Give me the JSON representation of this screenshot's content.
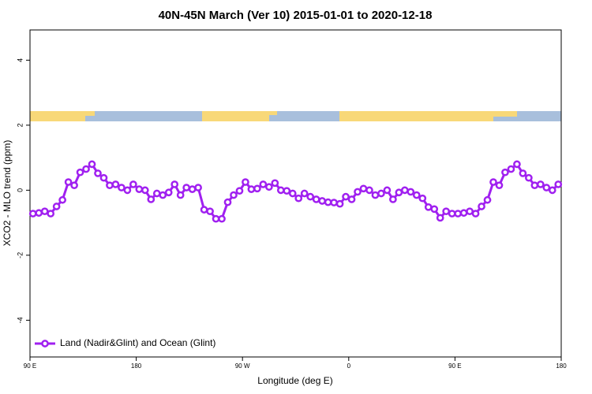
{
  "chart_data": {
    "type": "line",
    "title": "40N-45N March (Ver 10)   2015-01-01 to 2020-12-18",
    "xlabel": "Longitude (deg E)",
    "ylabel": "XCO2 - MLO trend (ppm)",
    "x": [
      92.5,
      97.5,
      102.5,
      107.5,
      112.5,
      117.5,
      122.5,
      127.5,
      132.5,
      137.5,
      142.5,
      147.5,
      152.5,
      157.5,
      162.5,
      167.5,
      172.5,
      177.5,
      182.5,
      187.5,
      192.5,
      197.5,
      202.5,
      207.5,
      212.5,
      217.5,
      222.5,
      227.5,
      232.5,
      237.5,
      242.5,
      247.5,
      252.5,
      257.5,
      262.5,
      267.5,
      272.5,
      277.5,
      282.5,
      287.5,
      292.5,
      297.5,
      302.5,
      307.5,
      312.5,
      317.5,
      322.5,
      327.5,
      332.5,
      337.5,
      342.5,
      347.5,
      352.5,
      357.5,
      362.5,
      367.5,
      372.5,
      377.5,
      382.5,
      387.5,
      392.5,
      397.5,
      402.5,
      407.5,
      412.5,
      417.5,
      422.5,
      427.5,
      432.5,
      437.5,
      442.5,
      447.5,
      452.5,
      457.5,
      462.5,
      467.5,
      472.5,
      477.5,
      482.5,
      487.5,
      492.5,
      497.5,
      502.5,
      507.5,
      512.5,
      517.5,
      522.5,
      527.5,
      532.5,
      537.5
    ],
    "series": [
      {
        "name": "Land (Nadir&Glint) and Ocean (Glint)",
        "color": "#a020f0",
        "values": [
          -0.72,
          -0.7,
          -0.65,
          -0.72,
          -0.5,
          -0.3,
          0.25,
          0.15,
          0.55,
          0.65,
          0.8,
          0.52,
          0.38,
          0.15,
          0.18,
          0.08,
          0.0,
          0.18,
          0.03,
          0.0,
          -0.28,
          -0.1,
          -0.15,
          -0.07,
          0.18,
          -0.15,
          0.08,
          0.03,
          0.08,
          -0.6,
          -0.65,
          -0.88,
          -0.88,
          -0.37,
          -0.15,
          -0.02,
          0.25,
          0.03,
          0.05,
          0.18,
          0.1,
          0.22,
          0.0,
          -0.02,
          -0.1,
          -0.25,
          -0.1,
          -0.2,
          -0.28,
          -0.33,
          -0.37,
          -0.38,
          -0.42,
          -0.2,
          -0.28,
          -0.05,
          0.05,
          0.0,
          -0.15,
          -0.1,
          0.0,
          -0.28,
          -0.07,
          0.0,
          -0.05,
          -0.15,
          -0.25,
          -0.52,
          -0.58,
          -0.85,
          -0.65,
          -0.72,
          -0.72,
          -0.7,
          -0.65,
          -0.72,
          -0.5,
          -0.3,
          0.25,
          0.15,
          0.55,
          0.65,
          0.8,
          0.52,
          0.38,
          0.15,
          0.18,
          0.08,
          0.0,
          0.18
        ]
      }
    ],
    "xlim": [
      90,
      540
    ],
    "xticks": [
      {
        "value": 90,
        "label": "90 E"
      },
      180,
      {
        "value": 270,
        "label": "90 W"
      },
      {
        "value": 360,
        "label": "0"
      },
      {
        "value": 450,
        "label": "90 E"
      },
      {
        "value": 540,
        "label": "180"
      }
    ],
    "ylim": [
      -5.13,
      4.93
    ],
    "yticks": [
      -4,
      -2,
      0,
      2,
      4
    ],
    "legend": "bottom-left"
  }
}
